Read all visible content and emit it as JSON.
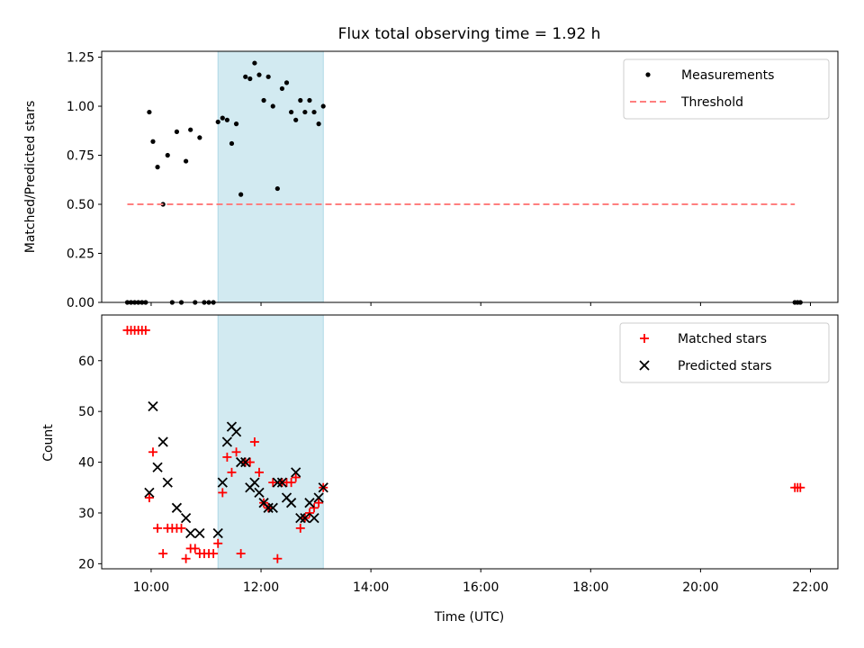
{
  "figure": {
    "title": "Flux total observing time = 1.92 h",
    "xlabel": "Time (UTC)",
    "x_ticks": [
      "10:00",
      "12:00",
      "14:00",
      "16:00",
      "18:00",
      "20:00",
      "22:00"
    ],
    "colors": {
      "shade": "#add8e6",
      "measurement": "#000000",
      "threshold": "#ff7f7f",
      "matched": "#ff0000",
      "predicted": "#000000"
    }
  },
  "chart_data": [
    {
      "type": "scatter",
      "ylabel": "Matched/Predicted stars",
      "xlim": [
        "09:06",
        "22:30"
      ],
      "ylim": [
        0,
        1.28
      ],
      "y_ticks": [
        "0.00",
        "0.25",
        "0.50",
        "0.75",
        "1.00",
        "1.25"
      ],
      "shaded_span": [
        "11:13",
        "13:08"
      ],
      "legend": {
        "location": "upper right",
        "entries": [
          "Measurements",
          "Threshold"
        ]
      },
      "series": [
        {
          "name": "Measurements",
          "marker": "dot",
          "x": [
            "09:34",
            "09:38",
            "09:42",
            "09:46",
            "09:50",
            "09:54",
            "09:58",
            "10:02",
            "10:07",
            "10:13",
            "10:18",
            "10:23",
            "10:28",
            "10:33",
            "10:38",
            "10:43",
            "10:48",
            "10:53",
            "10:58",
            "11:03",
            "11:08",
            "11:13",
            "11:18",
            "11:23",
            "11:28",
            "11:33",
            "11:38",
            "11:43",
            "11:48",
            "11:53",
            "11:58",
            "12:03",
            "12:08",
            "12:13",
            "12:18",
            "12:23",
            "12:28",
            "12:33",
            "12:38",
            "12:43",
            "12:48",
            "12:53",
            "12:58",
            "13:03",
            "13:08",
            "21:43",
            "21:46",
            "21:49"
          ],
          "y": [
            0,
            0,
            0,
            0,
            0,
            0,
            0.97,
            0.82,
            0.69,
            0.5,
            0.75,
            0,
            0.87,
            0,
            0.72,
            0.88,
            0,
            0.84,
            0,
            0,
            0,
            0.92,
            0.94,
            0.93,
            0.81,
            0.91,
            0.55,
            1.15,
            1.14,
            1.22,
            1.16,
            1.03,
            1.15,
            1.0,
            0.58,
            1.09,
            1.12,
            0.97,
            0.93,
            1.03,
            0.97,
            1.03,
            0.97,
            0.91,
            1.0,
            0,
            0,
            0
          ]
        },
        {
          "name": "Threshold",
          "style": "dashed",
          "x": [
            "09:34",
            "21:43"
          ],
          "y": [
            0.5,
            0.5
          ]
        }
      ]
    },
    {
      "type": "scatter",
      "ylabel": "Count",
      "xlim": [
        "09:06",
        "22:30"
      ],
      "ylim": [
        19,
        69
      ],
      "y_ticks": [
        "20",
        "30",
        "40",
        "50",
        "60"
      ],
      "shaded_span": [
        "11:13",
        "13:08"
      ],
      "legend": {
        "location": "upper right",
        "entries": [
          "Matched stars",
          "Predicted stars"
        ]
      },
      "series": [
        {
          "name": "Matched stars",
          "marker": "plus",
          "x": [
            "09:34",
            "09:38",
            "09:42",
            "09:46",
            "09:50",
            "09:54",
            "09:58",
            "10:02",
            "10:07",
            "10:13",
            "10:18",
            "10:23",
            "10:28",
            "10:33",
            "10:38",
            "10:43",
            "10:48",
            "10:53",
            "10:58",
            "11:03",
            "11:08",
            "11:13",
            "11:18",
            "11:23",
            "11:28",
            "11:33",
            "11:38",
            "11:43",
            "11:48",
            "11:53",
            "11:58",
            "12:03",
            "12:08",
            "12:13",
            "12:18",
            "12:23",
            "12:28",
            "12:33",
            "12:38",
            "12:43",
            "12:48",
            "12:53",
            "12:58",
            "13:03",
            "13:08",
            "21:43",
            "21:46",
            "21:49"
          ],
          "y": [
            66,
            66,
            66,
            66,
            66,
            66,
            33,
            42,
            27,
            22,
            27,
            27,
            27,
            27,
            21,
            23,
            23,
            22,
            22,
            22,
            22,
            24,
            34,
            41,
            38,
            42,
            22,
            40,
            40,
            44,
            38,
            32,
            31,
            36,
            21,
            36,
            36,
            36,
            37,
            27,
            29,
            30,
            31,
            32,
            35,
            35,
            35,
            35
          ]
        },
        {
          "name": "Predicted stars",
          "marker": "x",
          "x": [
            "09:58",
            "10:02",
            "10:07",
            "10:13",
            "10:18",
            "10:28",
            "10:38",
            "10:43",
            "10:53",
            "11:13",
            "11:18",
            "11:23",
            "11:28",
            "11:33",
            "11:38",
            "11:43",
            "11:48",
            "11:53",
            "11:58",
            "12:03",
            "12:08",
            "12:13",
            "12:18",
            "12:23",
            "12:28",
            "12:33",
            "12:38",
            "12:43",
            "12:48",
            "12:53",
            "12:58",
            "13:03",
            "13:08"
          ],
          "y": [
            34,
            51,
            39,
            44,
            36,
            31,
            29,
            26,
            26,
            26,
            36,
            44,
            47,
            46,
            40,
            40,
            35,
            36,
            34,
            32,
            31,
            31,
            36,
            36,
            33,
            32,
            38,
            29,
            29,
            32,
            29,
            33,
            35
          ]
        }
      ]
    }
  ]
}
